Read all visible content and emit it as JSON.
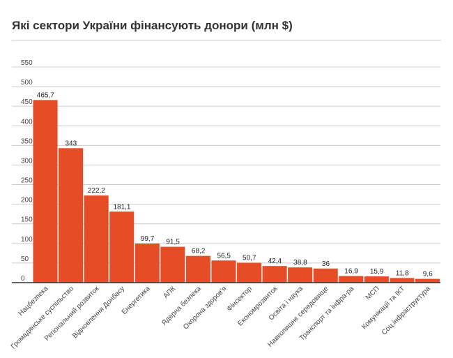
{
  "chart_data": {
    "type": "bar",
    "title": "Які сектори України фінансують донори (млн $)",
    "xlabel": "",
    "ylabel": "",
    "ylim": [
      0,
      550
    ],
    "yticks": [
      0,
      50,
      100,
      150,
      200,
      250,
      300,
      350,
      400,
      450,
      500,
      550
    ],
    "grid": true,
    "bar_color": "#e44d26",
    "categories": [
      "Нацбезпека",
      "Громадянське суспільство",
      "Регіональний розвиток",
      "Відновлення Донбасу",
      "Енергетика",
      "АПК",
      "Ядерна безпека",
      "Охорона здоров'я",
      "Фінсектор",
      "Економрозвиток",
      "Освіта і наука",
      "Навколишнє середовище",
      "Транспорт та інфра-ра",
      "МСП",
      "Комунікації та ІКТ",
      "Соц.інфраструктура"
    ],
    "values": [
      465.7,
      343,
      222.2,
      181.1,
      99.7,
      91.5,
      68.2,
      56.5,
      50.7,
      42.4,
      38.8,
      36,
      16.9,
      15.9,
      11.8,
      9.6
    ],
    "data_labels": [
      "465,7",
      "343",
      "222,2",
      "181,1",
      "99,7",
      "91,5",
      "68,2",
      "56,5",
      "50,7",
      "42,4",
      "38,8",
      "36",
      "16,9",
      "15,9",
      "11,8",
      "9,6"
    ]
  }
}
